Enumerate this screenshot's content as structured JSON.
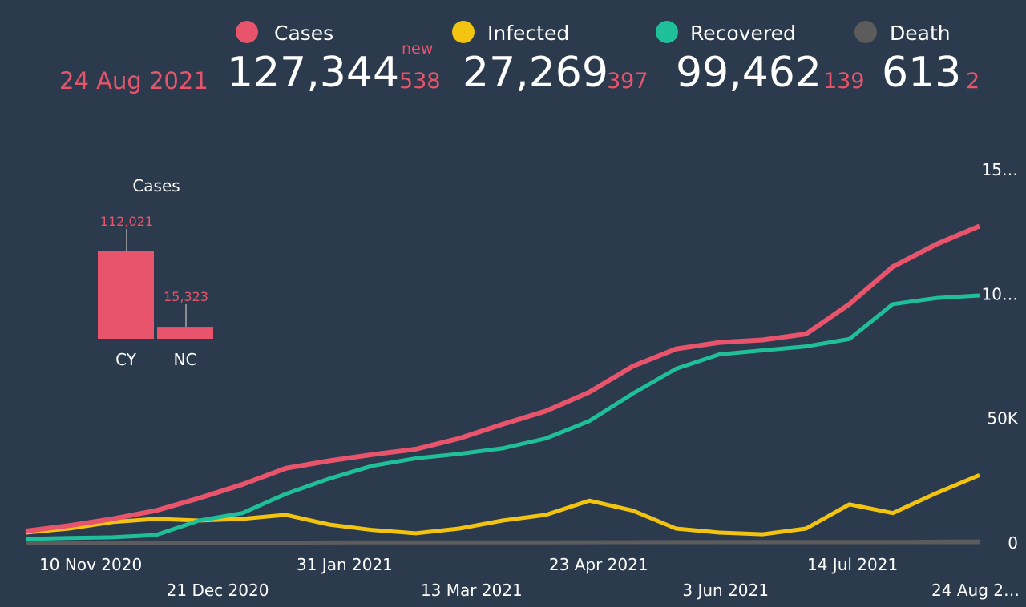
{
  "header": {
    "date": "24 Aug 2021",
    "new_label": "new",
    "stats": [
      {
        "total": "127,344",
        "new": "538"
      },
      {
        "total": "27,269",
        "new": "397"
      },
      {
        "total": "99,462",
        "new": "139"
      },
      {
        "total": "613",
        "new": "2"
      }
    ]
  },
  "chart_data": [
    {
      "type": "bar",
      "title": "Cases",
      "categories": [
        "CY",
        "NC"
      ],
      "values": [
        112021,
        15323
      ],
      "value_labels": [
        "112,021",
        "15,323"
      ],
      "color": "#e8546b",
      "ylim": [
        0,
        112021
      ]
    },
    {
      "type": "line",
      "x": [
        "2020-10-20",
        "2020-11-03",
        "2020-11-17",
        "2020-12-01",
        "2020-12-15",
        "2020-12-29",
        "2021-01-12",
        "2021-01-26",
        "2021-02-09",
        "2021-02-23",
        "2021-03-09",
        "2021-03-23",
        "2021-04-06",
        "2021-04-20",
        "2021-05-04",
        "2021-05-18",
        "2021-06-01",
        "2021-06-15",
        "2021-06-29",
        "2021-07-13",
        "2021-07-27",
        "2021-08-10",
        "2021-08-24"
      ],
      "xlim": [
        "2020-10-20",
        "2021-08-24"
      ],
      "xticks": [
        {
          "value": "2020-11-10",
          "label": "10 Nov 2020"
        },
        {
          "value": "2020-12-21",
          "label": "21 Dec 2020"
        },
        {
          "value": "2021-01-31",
          "label": "31 Jan 2021"
        },
        {
          "value": "2021-03-13",
          "label": "13 Mar 2021"
        },
        {
          "value": "2021-04-23",
          "label": "23 Apr 2021"
        },
        {
          "value": "2021-06-03",
          "label": "3 Jun 2021"
        },
        {
          "value": "2021-07-14",
          "label": "14 Jul 2021"
        },
        {
          "value": "2021-08-24",
          "label": "24 Aug 2…"
        }
      ],
      "ylim": [
        0,
        150000
      ],
      "yticks": [
        0,
        {
          "value": 50000,
          "label": "50K"
        },
        {
          "value": 100000,
          "label": "10…"
        },
        {
          "value": 150000,
          "label": "15…"
        }
      ],
      "series": [
        {
          "name": "Cases",
          "color": "#e8546b",
          "values": [
            4800,
            7000,
            9700,
            13000,
            18000,
            23500,
            30000,
            33000,
            35500,
            37700,
            42000,
            47700,
            53000,
            60600,
            71000,
            78000,
            80600,
            81600,
            84000,
            96000,
            111000,
            120000,
            127344
          ]
        },
        {
          "name": "Infected",
          "color": "#f2c40f",
          "values": [
            4200,
            5800,
            8400,
            9700,
            9000,
            9700,
            11300,
            7400,
            5200,
            3900,
            5800,
            9000,
            11300,
            17000,
            13000,
            5800,
            4200,
            3500,
            5800,
            15500,
            12000,
            20000,
            27269
          ]
        },
        {
          "name": "Recovered",
          "color": "#1fbf9a",
          "values": [
            1600,
            2000,
            2300,
            3200,
            9000,
            12000,
            19700,
            25800,
            31000,
            34000,
            35800,
            38000,
            42000,
            49000,
            60000,
            70000,
            75800,
            77400,
            79000,
            82000,
            96000,
            98400,
            99462
          ]
        },
        {
          "name": "Death",
          "color": "#5c5c5c",
          "values": [
            30,
            35,
            40,
            50,
            70,
            100,
            140,
            180,
            210,
            220,
            230,
            240,
            260,
            280,
            330,
            370,
            375,
            375,
            375,
            380,
            400,
            500,
            613
          ]
        }
      ]
    }
  ]
}
